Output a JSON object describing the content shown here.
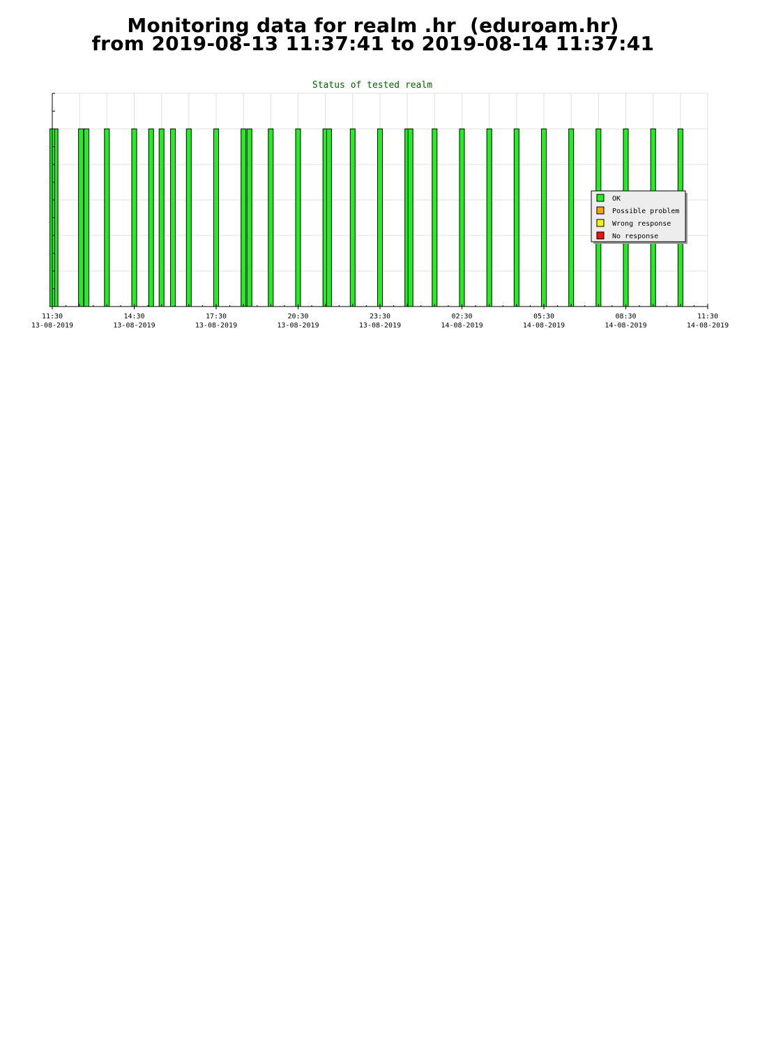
{
  "header": {
    "line1": "Monitoring data for realm .hr  (eduroam.hr)",
    "line2": "from 2019-08-13 11:37:41 to 2019-08-14 11:37:41"
  },
  "chart_data": {
    "type": "bar",
    "title": "Status of tested realm",
    "xlabel": "",
    "ylabel": "",
    "grid": true,
    "legend_placement": "right",
    "x_axis": {
      "range_hours": [
        0,
        24
      ],
      "tick_labels": [
        {
          "hour": 0,
          "time": "11:30",
          "date": "13-08-2019"
        },
        {
          "hour": 3,
          "time": "14:30",
          "date": "13-08-2019"
        },
        {
          "hour": 6,
          "time": "17:30",
          "date": "13-08-2019"
        },
        {
          "hour": 9,
          "time": "20:30",
          "date": "13-08-2019"
        },
        {
          "hour": 12,
          "time": "23:30",
          "date": "13-08-2019"
        },
        {
          "hour": 15,
          "time": "02:30",
          "date": "14-08-2019"
        },
        {
          "hour": 18,
          "time": "05:30",
          "date": "14-08-2019"
        },
        {
          "hour": 21,
          "time": "08:30",
          "date": "14-08-2019"
        },
        {
          "hour": 24,
          "time": "11:30",
          "date": "14-08-2019"
        }
      ]
    },
    "ylim": [
      0,
      6
    ],
    "series": [
      {
        "name": "OK",
        "color": "#22ee22",
        "value": 5,
        "times": [
          "11:37",
          "12:33",
          "12:45",
          "13:30",
          "14:30",
          "15:07",
          "15:30",
          "15:55",
          "16:30",
          "17:30",
          "18:30",
          "18:43",
          "19:30",
          "20:30",
          "21:30",
          "21:38",
          "22:30",
          "23:30",
          "00:30",
          "00:37",
          "01:30",
          "02:30",
          "03:30",
          "04:30",
          "05:30",
          "06:30",
          "07:30",
          "08:30",
          "09:30",
          "10:30",
          "11:30"
        ]
      },
      {
        "name": "Possible problem",
        "color": "#f5a30f",
        "value": 5,
        "times": []
      },
      {
        "name": "Wrong response",
        "color": "#f2f20a",
        "value": 5,
        "times": []
      },
      {
        "name": "No response",
        "color": "#ee1111",
        "value": 5,
        "times": []
      }
    ]
  }
}
